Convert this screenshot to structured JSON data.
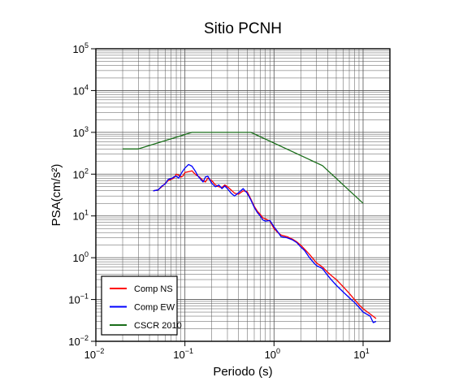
{
  "chart_data": {
    "type": "line",
    "title": "Sitio PCNH",
    "xlabel": "Periodo (s)",
    "ylabel": "PSA(cm/s²)",
    "xscale": "log",
    "yscale": "log",
    "xlim": [
      0.01,
      20
    ],
    "ylim": [
      0.01,
      100000
    ],
    "grid": true,
    "legend_position": "bottom-left",
    "x_tick_labels": [
      {
        "value": 0.01,
        "base": "10",
        "exp": "−2"
      },
      {
        "value": 0.1,
        "base": "10",
        "exp": "−1"
      },
      {
        "value": 1,
        "base": "10",
        "exp": "0"
      },
      {
        "value": 10,
        "base": "10",
        "exp": "1"
      }
    ],
    "y_tick_labels": [
      {
        "value": 0.01,
        "base": "10",
        "exp": "−2"
      },
      {
        "value": 0.1,
        "base": "10",
        "exp": "−1"
      },
      {
        "value": 1,
        "base": "10",
        "exp": "0"
      },
      {
        "value": 10,
        "base": "10",
        "exp": "1"
      },
      {
        "value": 100,
        "base": "10",
        "exp": "2"
      },
      {
        "value": 1000,
        "base": "10",
        "exp": "3"
      },
      {
        "value": 10000,
        "base": "10",
        "exp": "4"
      },
      {
        "value": 100000,
        "base": "10",
        "exp": "5"
      }
    ],
    "series": [
      {
        "name": "Comp NS",
        "color": "#ff0000",
        "x": [
          0.044,
          0.05,
          0.055,
          0.06,
          0.065,
          0.07,
          0.075,
          0.08,
          0.085,
          0.09,
          0.095,
          0.1,
          0.11,
          0.12,
          0.13,
          0.14,
          0.15,
          0.16,
          0.17,
          0.18,
          0.2,
          0.22,
          0.24,
          0.26,
          0.28,
          0.3,
          0.33,
          0.36,
          0.4,
          0.45,
          0.5,
          0.55,
          0.6,
          0.65,
          0.7,
          0.75,
          0.8,
          0.9,
          1.0,
          1.1,
          1.2,
          1.4,
          1.6,
          1.8,
          2.0,
          2.2,
          2.5,
          2.8,
          3.0,
          3.5,
          4.0,
          4.5,
          5.0,
          6.0,
          7.0,
          8.0,
          9.0,
          10.0,
          12.0,
          14.0
        ],
        "y": [
          40,
          42,
          50,
          60,
          70,
          75,
          80,
          100,
          95,
          85,
          90,
          110,
          115,
          120,
          100,
          90,
          80,
          70,
          65,
          80,
          70,
          55,
          50,
          48,
          55,
          50,
          42,
          35,
          33,
          40,
          38,
          25,
          17,
          13,
          11,
          9,
          8.5,
          7.5,
          5,
          4,
          3.5,
          3.2,
          2.8,
          2.4,
          2.0,
          1.6,
          1.2,
          0.9,
          0.75,
          0.6,
          0.45,
          0.36,
          0.3,
          0.2,
          0.14,
          0.1,
          0.075,
          0.06,
          0.045,
          0.035
        ]
      },
      {
        "name": "Comp EW",
        "color": "#0000ff",
        "x": [
          0.044,
          0.05,
          0.055,
          0.06,
          0.065,
          0.07,
          0.075,
          0.08,
          0.085,
          0.09,
          0.095,
          0.1,
          0.11,
          0.12,
          0.13,
          0.14,
          0.15,
          0.16,
          0.17,
          0.18,
          0.2,
          0.22,
          0.24,
          0.26,
          0.28,
          0.3,
          0.33,
          0.36,
          0.4,
          0.45,
          0.5,
          0.55,
          0.6,
          0.65,
          0.7,
          0.75,
          0.8,
          0.9,
          1.0,
          1.1,
          1.2,
          1.4,
          1.6,
          1.8,
          2.0,
          2.2,
          2.5,
          2.8,
          3.0,
          3.5,
          4.0,
          4.5,
          5.0,
          6.0,
          7.0,
          8.0,
          9.0,
          10.0,
          12.0,
          13.0,
          14.0
        ],
        "y": [
          40,
          42,
          52,
          58,
          75,
          78,
          85,
          90,
          80,
          100,
          120,
          140,
          170,
          155,
          120,
          90,
          75,
          65,
          85,
          90,
          60,
          50,
          55,
          45,
          52,
          45,
          35,
          30,
          36,
          45,
          35,
          24,
          16,
          12,
          10,
          8,
          7.5,
          7.8,
          5.5,
          4.2,
          3.2,
          3.0,
          2.7,
          2.3,
          1.8,
          1.5,
          1.0,
          0.75,
          0.65,
          0.55,
          0.38,
          0.28,
          0.22,
          0.15,
          0.11,
          0.085,
          0.065,
          0.05,
          0.04,
          0.028,
          0.03
        ]
      },
      {
        "name": "CSCR 2010",
        "color": "#1a6e1a",
        "x": [
          0.02,
          0.03,
          0.12,
          0.55,
          3.5,
          10.0
        ],
        "y": [
          400,
          400,
          1000,
          1000,
          160,
          20
        ]
      }
    ]
  }
}
